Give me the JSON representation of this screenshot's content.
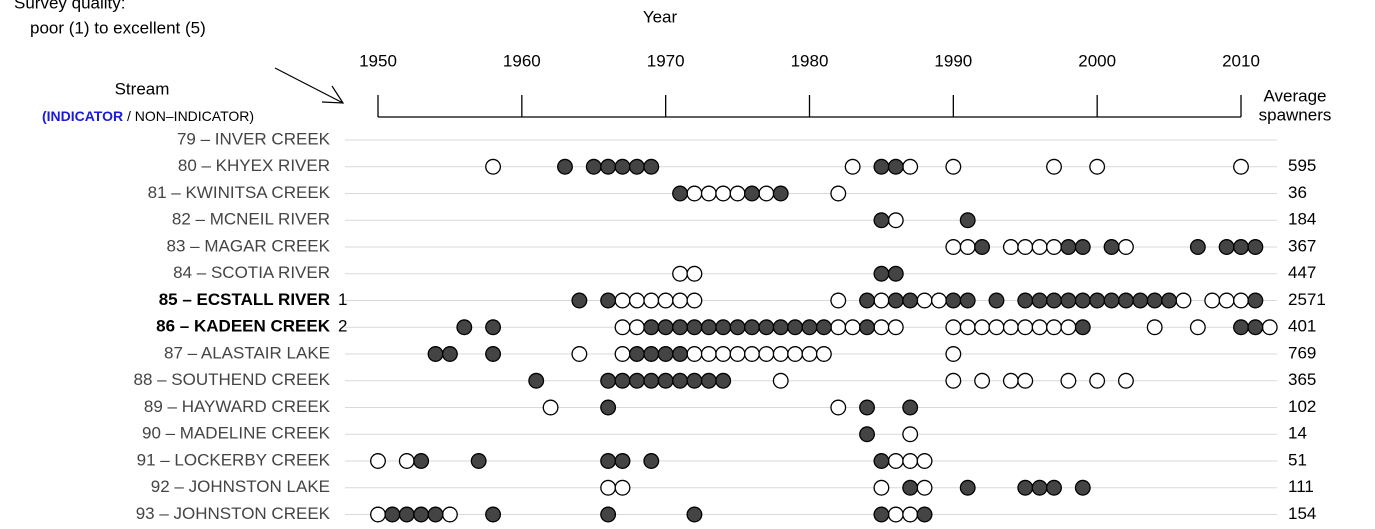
{
  "chart_data": {
    "type": "dotplot",
    "annotation": [
      "Survey quality:",
      "poor (1) to excellent (5)"
    ],
    "x_label": "Year",
    "stream_label": "Stream",
    "stream_legend": [
      "(",
      "INDICATOR",
      " / NON–INDICATOR)"
    ],
    "average_label": [
      "Average",
      "spawners"
    ],
    "xlim": [
      1950,
      2010
    ],
    "xticks": [
      1950,
      1960,
      1970,
      1980,
      1990,
      2000,
      2010
    ],
    "filled_color": "#444444",
    "open_color": "#ffffff",
    "indicator_color": "#1a1adf",
    "streams": [
      {
        "name": "79 – INVER CREEK",
        "average": null,
        "filled": [],
        "open": []
      },
      {
        "name": "80 – KHYEX RIVER",
        "average": 595,
        "filled": [
          1963,
          1965,
          1966,
          1967,
          1968,
          1969,
          1985,
          1986
        ],
        "open": [
          1958,
          1983,
          1987,
          1990,
          1997,
          2000,
          2010
        ]
      },
      {
        "name": "81 – KWINITSA CREEK",
        "average": 36,
        "filled": [
          1971,
          1976,
          1978
        ],
        "open": [
          1972,
          1973,
          1974,
          1975,
          1977,
          1982
        ]
      },
      {
        "name": "82 – MCNEIL RIVER",
        "average": 184,
        "filled": [
          1985,
          1991
        ],
        "open": [
          1986
        ]
      },
      {
        "name": "83 – MAGAR CREEK",
        "average": 367,
        "filled": [
          1992,
          1998,
          1999,
          2001,
          2007,
          2009,
          2010,
          2011
        ],
        "open": [
          1990,
          1991,
          1994,
          1995,
          1996,
          1997,
          2002
        ]
      },
      {
        "name": "84 – SCOTIA RIVER",
        "average": 447,
        "filled": [
          1985,
          1986
        ],
        "open": [
          1971,
          1972
        ]
      },
      {
        "name": "85 – ECSTALL RIVER",
        "indicator": 1,
        "average": 2571,
        "filled": [
          1964,
          1966,
          1984,
          1986,
          1987,
          1990,
          1991,
          1993,
          1995,
          1996,
          1997,
          1998,
          1999,
          2000,
          2001,
          2002,
          2003,
          2004,
          2005,
          2011
        ],
        "open": [
          1967,
          1968,
          1969,
          1970,
          1971,
          1972,
          1982,
          1985,
          1988,
          1989,
          2006,
          2008,
          2009,
          2010
        ]
      },
      {
        "name": "86 – KADEEN CREEK",
        "indicator": 2,
        "average": 401,
        "filled": [
          1956,
          1958,
          1969,
          1970,
          1971,
          1972,
          1973,
          1974,
          1975,
          1976,
          1977,
          1978,
          1979,
          1980,
          1981,
          1984,
          1999,
          2010,
          2011
        ],
        "open": [
          1967,
          1968,
          1982,
          1983,
          1985,
          1986,
          1990,
          1991,
          1992,
          1993,
          1994,
          1995,
          1996,
          1997,
          1998,
          2004,
          2007,
          2012
        ]
      },
      {
        "name": "87 – ALASTAIR LAKE",
        "average": 769,
        "filled": [
          1954,
          1955,
          1958,
          1968,
          1969,
          1970,
          1971
        ],
        "open": [
          1964,
          1967,
          1972,
          1973,
          1974,
          1975,
          1976,
          1977,
          1978,
          1979,
          1980,
          1981,
          1990
        ]
      },
      {
        "name": "88 – SOUTHEND CREEK",
        "average": 365,
        "filled": [
          1961,
          1966,
          1967,
          1968,
          1969,
          1970,
          1971,
          1972,
          1973,
          1974
        ],
        "open": [
          1978,
          1990,
          1992,
          1994,
          1995,
          1998,
          2000,
          2002
        ]
      },
      {
        "name": "89 – HAYWARD CREEK",
        "average": 102,
        "filled": [
          1966,
          1984,
          1987
        ],
        "open": [
          1962,
          1982
        ]
      },
      {
        "name": "90 – MADELINE CREEK",
        "average": 14,
        "filled": [
          1984
        ],
        "open": [
          1987
        ]
      },
      {
        "name": "91 – LOCKERBY CREEK",
        "average": 51,
        "filled": [
          1953,
          1957,
          1966,
          1967,
          1969,
          1985
        ],
        "open": [
          1950,
          1952,
          1986,
          1987,
          1988
        ]
      },
      {
        "name": "92 – JOHNSTON LAKE",
        "average": 111,
        "filled": [
          1987,
          1991,
          1995,
          1996,
          1997,
          1999
        ],
        "open": [
          1966,
          1967,
          1985,
          1988
        ]
      },
      {
        "name": "93 – JOHNSTON CREEK",
        "average": 154,
        "filled": [
          1951,
          1952,
          1953,
          1954,
          1958,
          1966,
          1972,
          1985,
          1988
        ],
        "open": [
          1950,
          1955,
          1986,
          1987
        ]
      }
    ]
  }
}
